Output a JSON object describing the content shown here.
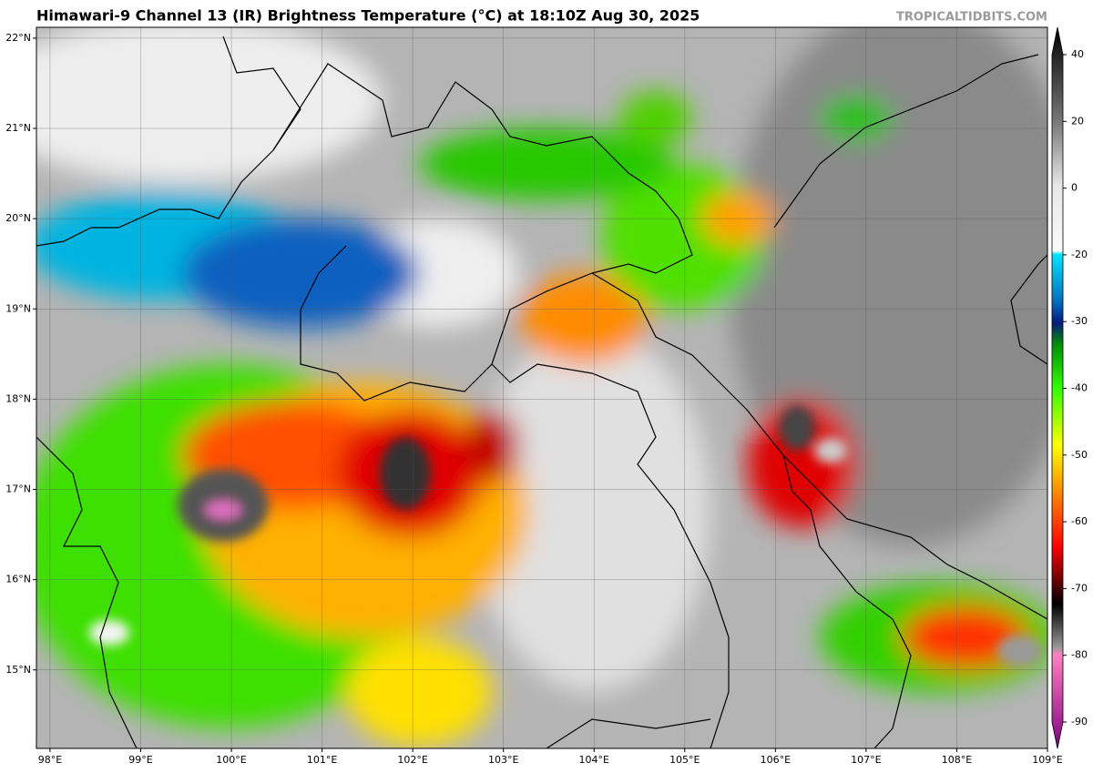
{
  "title": "Himawari-9 Channel 13 (IR) Brightness Temperature (°C) at 18:10Z Aug 30, 2025",
  "credit": "TROPICALTIDBITS.COM",
  "map": {
    "latlim": [
      14.13,
      22.12
    ],
    "lonlim": [
      97.85,
      109.0
    ],
    "lat_ticks": [
      {
        "value": 22,
        "label": "22°N"
      },
      {
        "value": 21,
        "label": "21°N"
      },
      {
        "value": 20,
        "label": "20°N"
      },
      {
        "value": 19,
        "label": "19°N"
      },
      {
        "value": 18,
        "label": "18°N"
      },
      {
        "value": 17,
        "label": "17°N"
      },
      {
        "value": 16,
        "label": "16°N"
      },
      {
        "value": 15,
        "label": "15°N"
      }
    ],
    "lon_ticks": [
      {
        "value": 98,
        "label": "98°E"
      },
      {
        "value": 99,
        "label": "99°E"
      },
      {
        "value": 100,
        "label": "100°E"
      },
      {
        "value": 101,
        "label": "101°E"
      },
      {
        "value": 102,
        "label": "102°E"
      },
      {
        "value": 103,
        "label": "103°E"
      },
      {
        "value": 104,
        "label": "104°E"
      },
      {
        "value": 105,
        "label": "105°E"
      },
      {
        "value": 106,
        "label": "106°E"
      },
      {
        "value": 107,
        "label": "107°E"
      },
      {
        "value": 108,
        "label": "108°E"
      },
      {
        "value": 109,
        "label": "109°E"
      }
    ]
  },
  "colorbar": {
    "ticks": [
      40,
      20,
      0,
      -20,
      -30,
      -40,
      -50,
      -60,
      -70,
      -80,
      -90
    ]
  }
}
